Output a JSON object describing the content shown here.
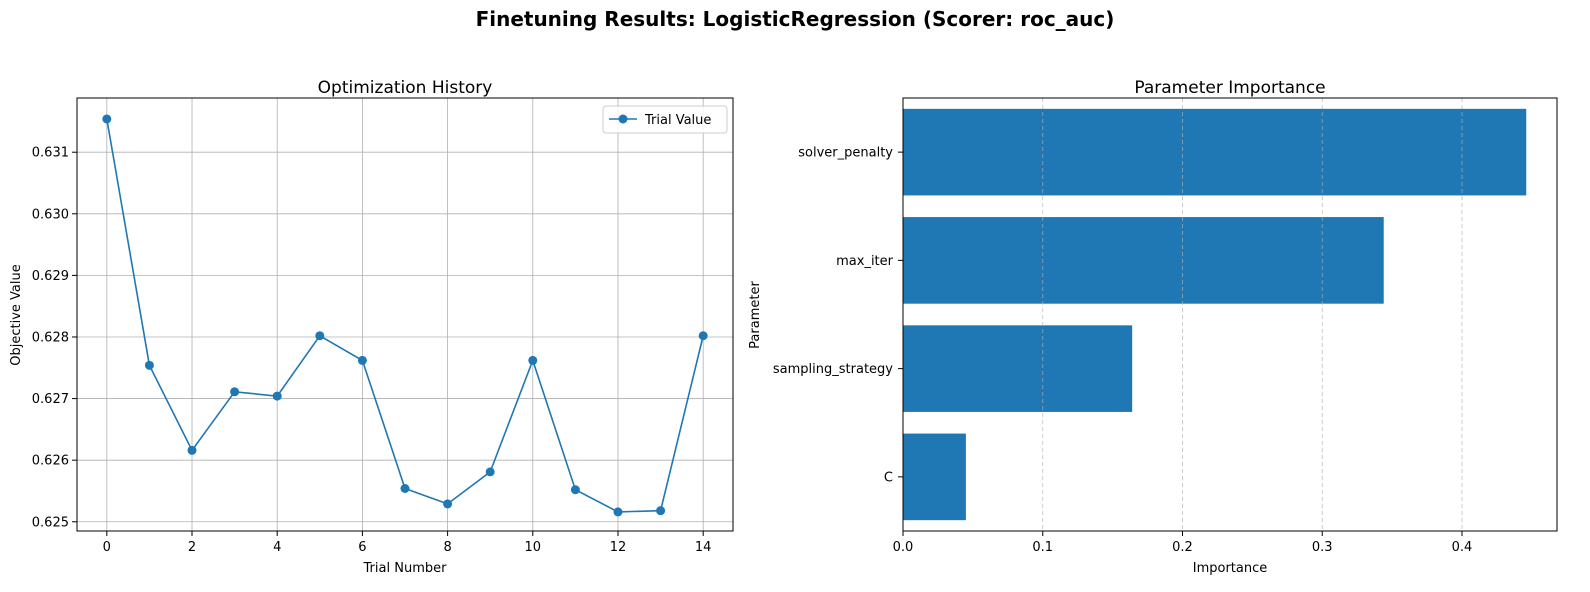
{
  "figure_title": "Finetuning Results: LogisticRegression (Scorer: roc_auc)",
  "colors": {
    "series": "#1f77b4",
    "grid": "#b0b0b0",
    "axis": "#000000"
  },
  "chart_data": [
    {
      "type": "line",
      "title": "Optimization History",
      "xlabel": "Trial Number",
      "ylabel": "Objective Value",
      "xlim": [
        -0.7,
        14.7
      ],
      "ylim": [
        0.62485,
        0.63188
      ],
      "xticks": [
        0,
        2,
        4,
        6,
        8,
        10,
        12,
        14
      ],
      "yticks": [
        0.625,
        0.626,
        0.627,
        0.628,
        0.629,
        0.63,
        0.631
      ],
      "grid": true,
      "legend": {
        "position": "top-right",
        "entries": [
          "Trial Value"
        ]
      },
      "series": [
        {
          "name": "Trial Value",
          "marker": "circle",
          "x": [
            0,
            1,
            2,
            3,
            4,
            5,
            6,
            7,
            8,
            9,
            10,
            11,
            12,
            13,
            14
          ],
          "y": [
            0.63154,
            0.62754,
            0.62616,
            0.62711,
            0.62704,
            0.62802,
            0.62762,
            0.62554,
            0.62529,
            0.62581,
            0.62762,
            0.62552,
            0.62516,
            0.62518,
            0.62802
          ]
        }
      ]
    },
    {
      "type": "bar",
      "orientation": "horizontal",
      "title": "Parameter Importance",
      "xlabel": "Importance",
      "ylabel": "Parameter",
      "categories": [
        "solver_penalty",
        "max_iter",
        "sampling_strategy",
        "C"
      ],
      "values": [
        0.446,
        0.344,
        0.164,
        0.045
      ],
      "xlim": [
        0,
        0.468
      ],
      "xticks": [
        0.0,
        0.1,
        0.2,
        0.3,
        0.4
      ],
      "grid": "x-dashed"
    }
  ]
}
